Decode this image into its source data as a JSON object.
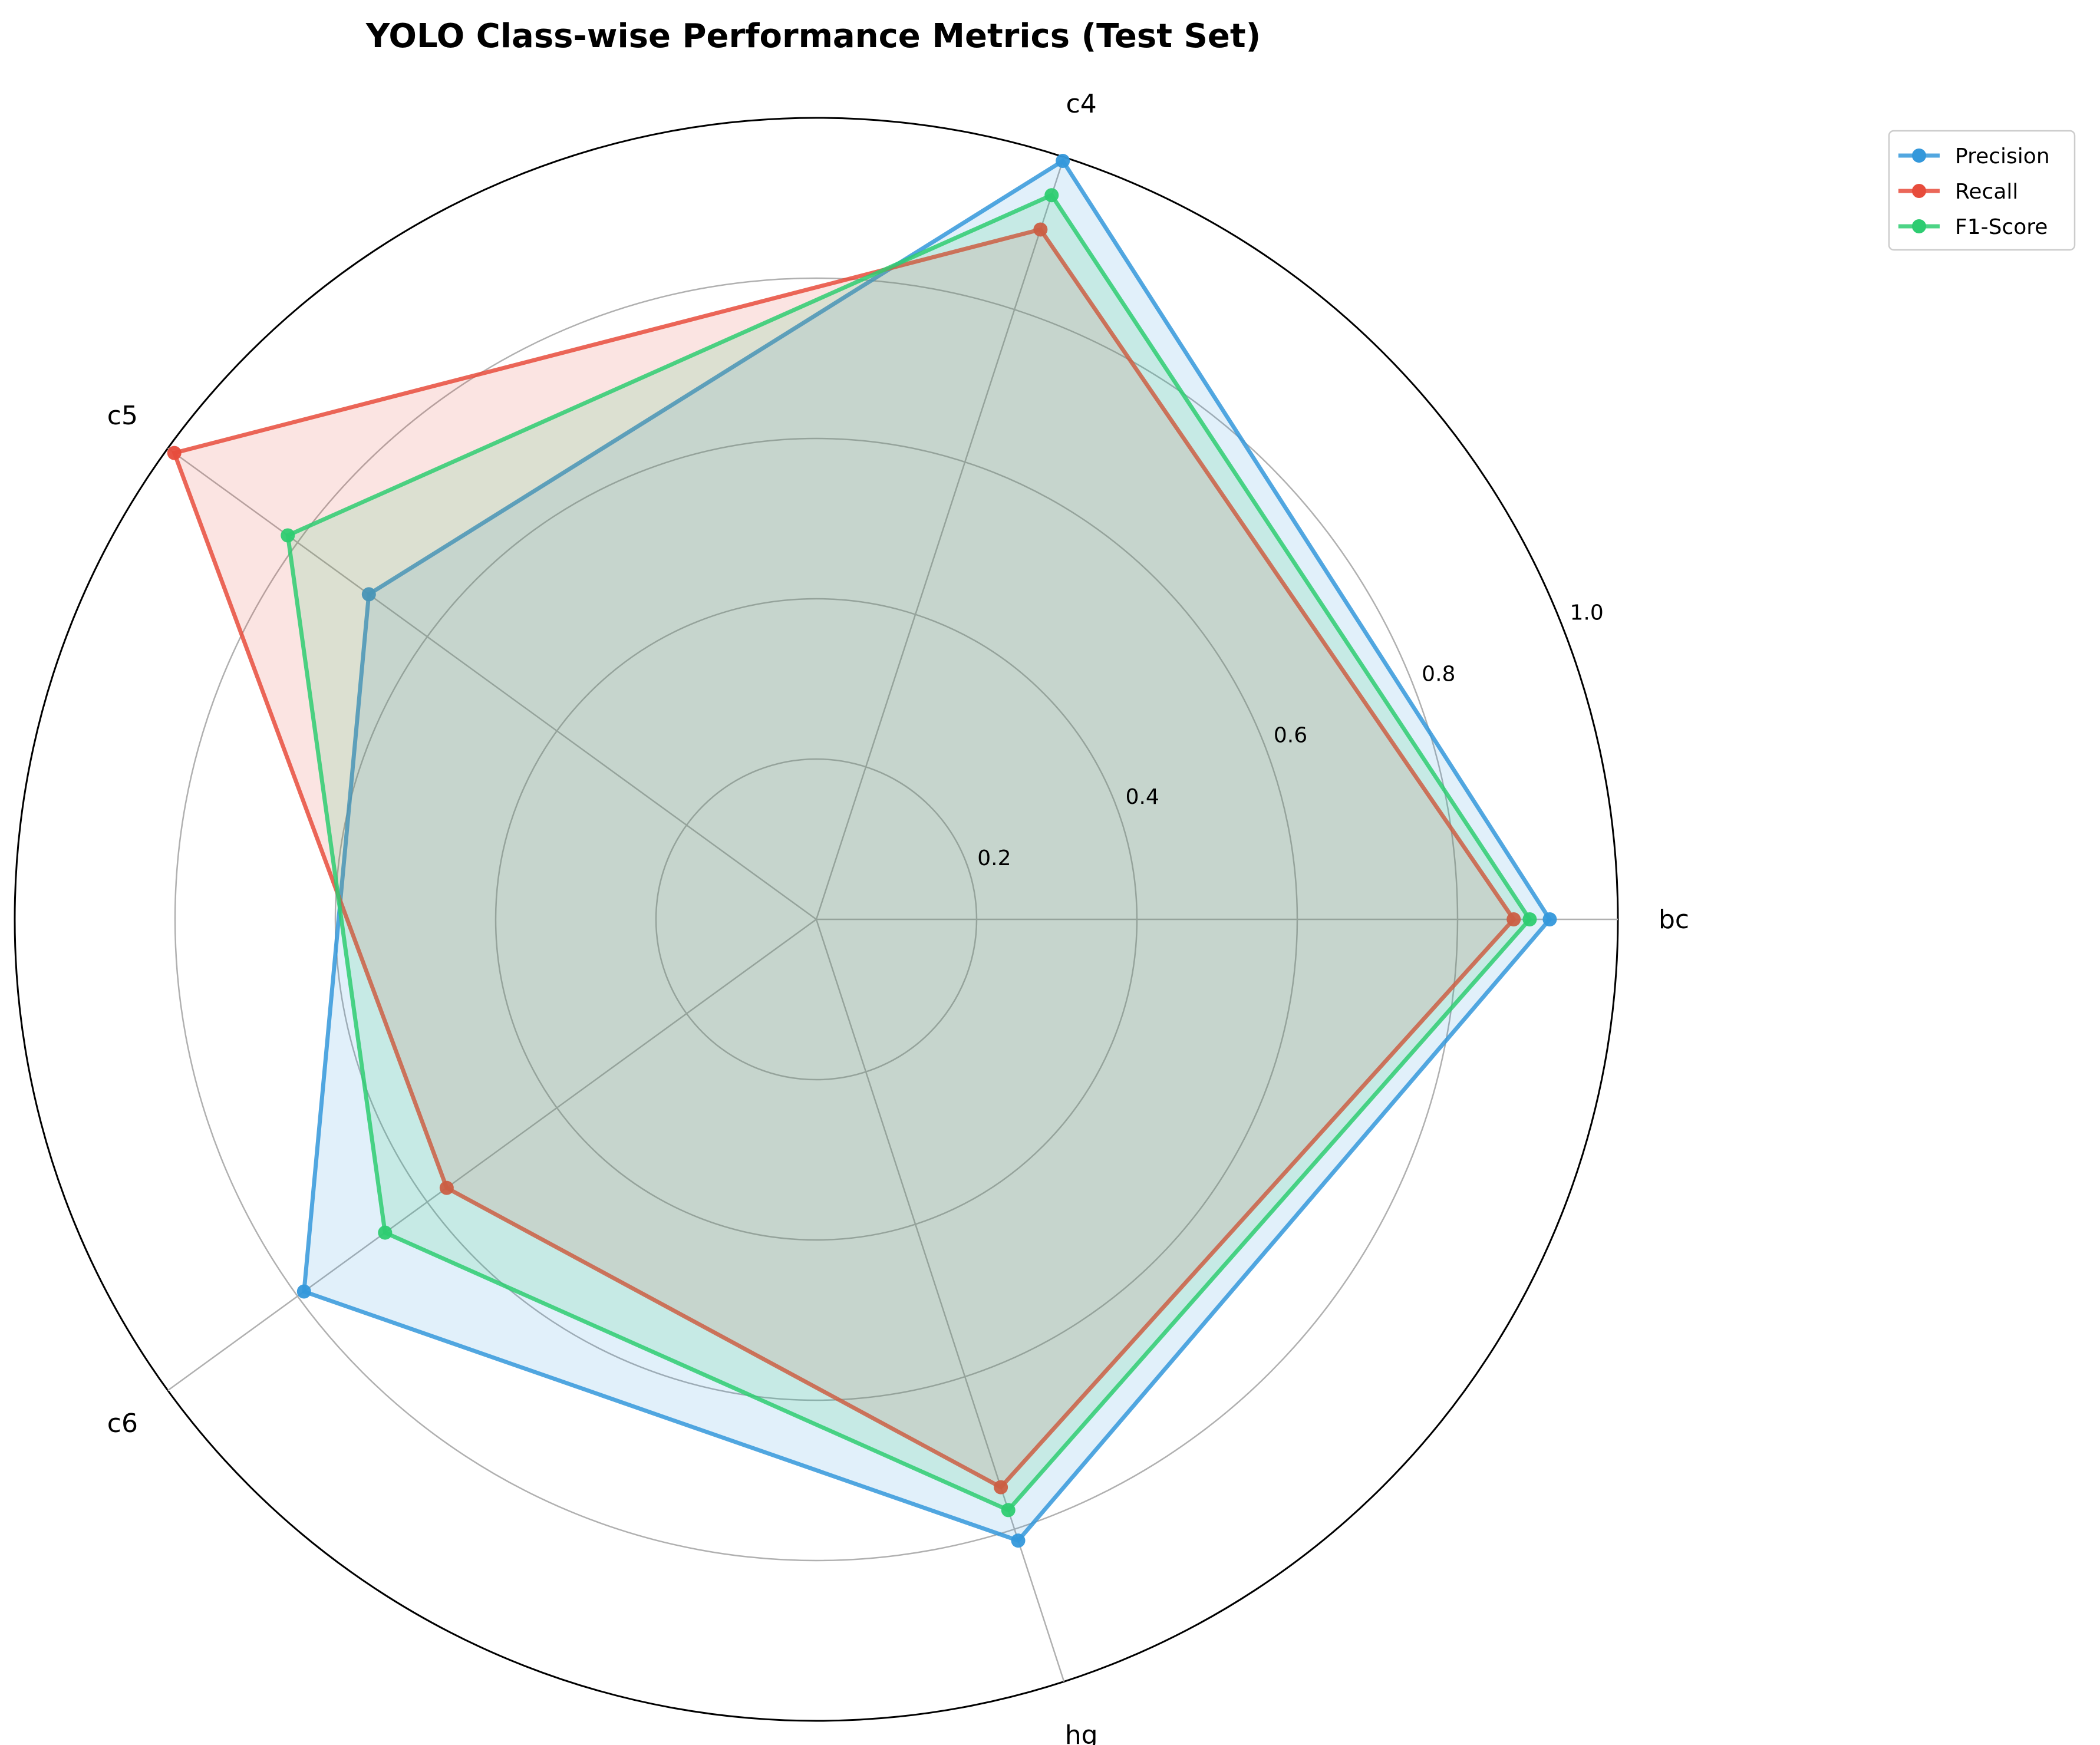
{
  "chart_data": {
    "type": "radar",
    "title": "YOLO Class-wise Performance Metrics (Test Set)",
    "categories": [
      "bc",
      "c4",
      "c5",
      "c6",
      "hg"
    ],
    "rlim": [
      0,
      1.0
    ],
    "rticks": [
      "0.2",
      "0.4",
      "0.6",
      "0.8",
      "1.0"
    ],
    "grid": true,
    "legend_position": "upper-right",
    "series": [
      {
        "name": "Precision",
        "values": [
          0.915,
          0.995,
          0.69,
          0.79,
          0.815
        ],
        "color": "#3498db"
      },
      {
        "name": "Recall",
        "values": [
          0.87,
          0.905,
          0.99,
          0.57,
          0.745
        ],
        "color": "#e74c3c"
      },
      {
        "name": "F1-Score",
        "values": [
          0.89,
          0.95,
          0.815,
          0.665,
          0.775
        ],
        "color": "#2ecc71"
      }
    ]
  }
}
